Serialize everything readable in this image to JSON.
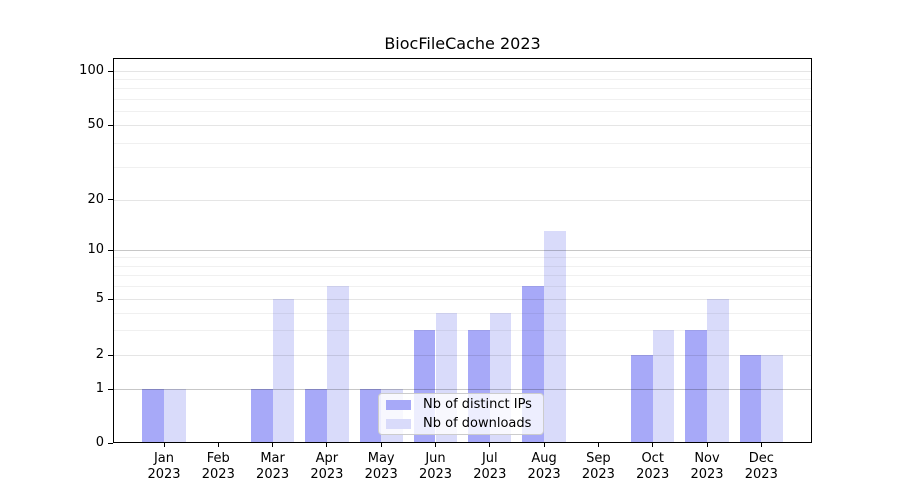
{
  "title": "BiocFileCache 2023",
  "colors": {
    "background": "#ffffff",
    "axis": "#000000",
    "grid_decade": "rgba(0,0,0,0.22)",
    "grid_labeled": "rgba(0,0,0,0.10)",
    "grid_minor": "rgba(0,0,0,0.06)"
  },
  "chart_data": {
    "type": "bar",
    "title": "BiocFileCache 2023",
    "categories": [
      "Jan 2023",
      "Feb 2023",
      "Mar 2023",
      "Apr 2023",
      "May 2023",
      "Jun 2023",
      "Jul 2023",
      "Aug 2023",
      "Sep 2023",
      "Oct 2023",
      "Nov 2023",
      "Dec 2023"
    ],
    "series": [
      {
        "name": "Nb of distinct IPs",
        "color": "#a7a9f8",
        "values": [
          1,
          0,
          1,
          1,
          1,
          3,
          3,
          6,
          0,
          2,
          3,
          2
        ]
      },
      {
        "name": "Nb of downloads",
        "color": "#d9dbfa",
        "values": [
          1,
          0,
          5,
          6,
          1,
          4,
          4,
          13,
          0,
          3,
          5,
          2
        ]
      }
    ],
    "xlabel": "",
    "ylabel": "",
    "yscale": "log above 1, linear 0-1 (symlog-like)",
    "yticks": [
      0,
      1,
      2,
      5,
      10,
      20,
      50,
      100
    ],
    "ylim": [
      0,
      118
    ],
    "grid": true,
    "legend_position": "lower center, inside plot"
  }
}
